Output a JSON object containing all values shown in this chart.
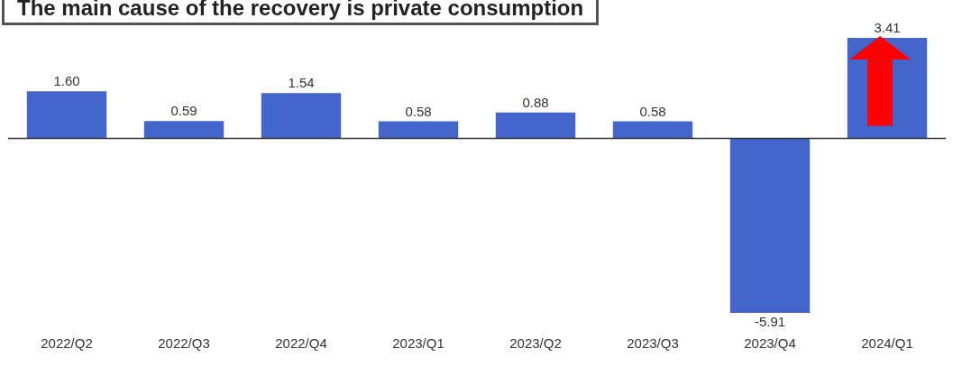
{
  "chart_data": {
    "type": "bar",
    "title": "The main cause of the recovery is private consumption",
    "categories": [
      "2022/Q2",
      "2022/Q3",
      "2022/Q4",
      "2023/Q1",
      "2023/Q2",
      "2023/Q3",
      "2023/Q4",
      "2024/Q1"
    ],
    "values": [
      1.6,
      0.59,
      1.54,
      0.58,
      0.88,
      0.58,
      -5.91,
      3.41
    ],
    "value_labels": [
      "1.60",
      "0.59",
      "1.54",
      "0.58",
      "0.88",
      "0.58",
      "-5.91",
      "3.41"
    ],
    "color": "#4466cc",
    "grid": false
  }
}
